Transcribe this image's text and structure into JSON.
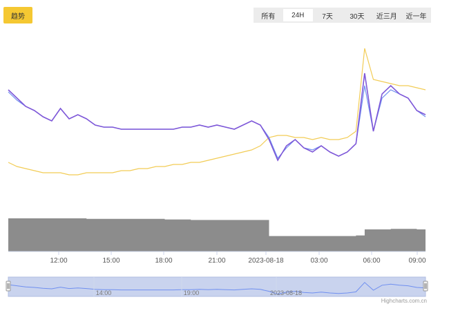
{
  "header": {
    "trend_label": "趋势",
    "range_options": [
      "所有",
      "24H",
      "7天",
      "30天",
      "近三月",
      "近一年"
    ],
    "selected_range": "24H"
  },
  "colors": {
    "purple_line": "#7e57d8",
    "blue_line": "#6f8ff0",
    "yellow_line": "#f2cc55",
    "volume_fill": "#8c8c8c",
    "navigator_fill": "#c9d3ee",
    "navigator_line": "#6f8ff0",
    "trend_button": "#f5c832"
  },
  "x_axis_labels": [
    "12:00",
    "15:00",
    "18:00",
    "21:00",
    "2023-08-18",
    "03:00",
    "06:00",
    "09:00"
  ],
  "navigator": {
    "labels": [
      "14:00",
      "19:00",
      "2023-08-18"
    ]
  },
  "credit": "Highcharts.com.cn",
  "chart_data": {
    "type": "line",
    "x": [
      "09:30",
      "10:00",
      "10:30",
      "11:00",
      "11:30",
      "12:00",
      "12:30",
      "13:00",
      "13:30",
      "14:00",
      "14:30",
      "15:00",
      "15:30",
      "16:00",
      "16:30",
      "17:00",
      "17:30",
      "18:00",
      "18:30",
      "19:00",
      "19:30",
      "20:00",
      "20:30",
      "21:00",
      "21:30",
      "22:00",
      "22:30",
      "23:00",
      "23:30",
      "00:00",
      "00:30",
      "01:00",
      "01:30",
      "02:00",
      "02:30",
      "03:00",
      "03:30",
      "04:00",
      "04:30",
      "05:00",
      "05:30",
      "06:00",
      "06:30",
      "07:00",
      "07:30",
      "08:00",
      "08:30",
      "09:00",
      "09:10"
    ],
    "series": [
      {
        "values": [
          60,
          56,
          52,
          50,
          47,
          45,
          51,
          46,
          48,
          46,
          43,
          42,
          42,
          41,
          41,
          41,
          41,
          41,
          41,
          41,
          42,
          42,
          43,
          42,
          43,
          42,
          41,
          43,
          45,
          43,
          36,
          26,
          33,
          36,
          32,
          30,
          33,
          30,
          28,
          30,
          34,
          68,
          40,
          58,
          62,
          58,
          56,
          50,
          48
        ]
      },
      {
        "values": [
          59,
          55,
          52,
          50,
          47,
          45,
          51,
          46,
          48,
          46,
          43,
          42,
          42,
          41,
          41,
          41,
          41,
          41,
          41,
          41,
          42,
          42,
          43,
          42,
          43,
          42,
          41,
          43,
          45,
          43,
          37,
          27,
          32,
          36,
          32,
          31,
          33,
          30,
          28,
          30,
          34,
          62,
          40,
          56,
          60,
          58,
          56,
          50,
          47
        ]
      },
      {
        "values": [
          25,
          23,
          22,
          21,
          20,
          20,
          20,
          19,
          19,
          20,
          20,
          20,
          20,
          21,
          21,
          22,
          22,
          23,
          23,
          24,
          24,
          25,
          25,
          26,
          27,
          28,
          29,
          30,
          31,
          33,
          37,
          38,
          38,
          37,
          37,
          36,
          37,
          36,
          36,
          37,
          40,
          80,
          65,
          64,
          63,
          62,
          62,
          61,
          60
        ]
      },
      {
        "values": [
          60,
          60,
          60,
          60,
          60,
          60,
          60,
          60,
          60,
          59,
          59,
          59,
          59,
          59,
          59,
          59,
          59,
          59,
          58,
          58,
          58,
          57,
          57,
          57,
          57,
          57,
          57,
          57,
          57,
          57,
          28,
          28,
          28,
          28,
          28,
          28,
          28,
          28,
          28,
          28,
          29,
          40,
          40,
          40,
          41,
          41,
          41,
          40,
          40
        ]
      }
    ]
  }
}
